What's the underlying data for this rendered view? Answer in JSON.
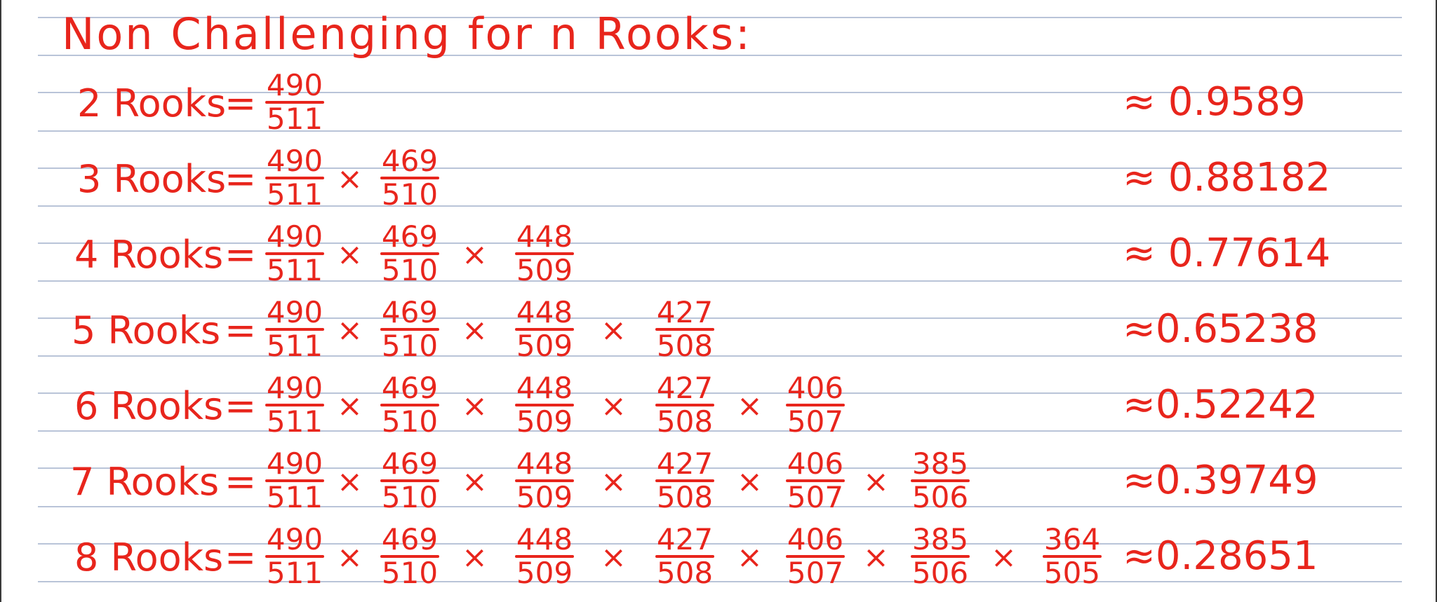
{
  "title": "Non Challenging for n Rooks:",
  "rows": [
    {
      "label": "2 Rooks",
      "eq": "=",
      "times": "×",
      "approx": "≈ 0.9589",
      "fractions": [
        {
          "num": "490",
          "den": "511"
        }
      ]
    },
    {
      "label": "3 Rooks",
      "eq": "=",
      "times": "×",
      "approx": "≈ 0.88182",
      "fractions": [
        {
          "num": "490",
          "den": "511"
        },
        {
          "num": "469",
          "den": "510"
        }
      ]
    },
    {
      "label": "4 Rooks",
      "eq": "=",
      "times": "×",
      "approx": "≈ 0.77614",
      "fractions": [
        {
          "num": "490",
          "den": "511"
        },
        {
          "num": "469",
          "den": "510"
        },
        {
          "num": "448",
          "den": "509"
        }
      ]
    },
    {
      "label": "5 Rooks",
      "eq": "=",
      "times": "×",
      "approx": "≈0.65238",
      "fractions": [
        {
          "num": "490",
          "den": "511"
        },
        {
          "num": "469",
          "den": "510"
        },
        {
          "num": "448",
          "den": "509"
        },
        {
          "num": "427",
          "den": "508"
        }
      ]
    },
    {
      "label": "6 Rooks",
      "eq": "=",
      "times": "×",
      "approx": "≈0.52242",
      "fractions": [
        {
          "num": "490",
          "den": "511"
        },
        {
          "num": "469",
          "den": "510"
        },
        {
          "num": "448",
          "den": "509"
        },
        {
          "num": "427",
          "den": "508"
        },
        {
          "num": "406",
          "den": "507"
        }
      ]
    },
    {
      "label": "7 Rooks",
      "eq": "=",
      "times": "×",
      "approx": "≈0.39749",
      "fractions": [
        {
          "num": "490",
          "den": "511"
        },
        {
          "num": "469",
          "den": "510"
        },
        {
          "num": "448",
          "den": "509"
        },
        {
          "num": "427",
          "den": "508"
        },
        {
          "num": "406",
          "den": "507"
        },
        {
          "num": "385",
          "den": "506"
        }
      ]
    },
    {
      "label": "8 Rooks",
      "eq": "=",
      "times": "×",
      "approx": "≈0.28651",
      "fractions": [
        {
          "num": "490",
          "den": "511"
        },
        {
          "num": "469",
          "den": "510"
        },
        {
          "num": "448",
          "den": "509"
        },
        {
          "num": "427",
          "den": "508"
        },
        {
          "num": "406",
          "den": "507"
        },
        {
          "num": "385",
          "den": "506"
        },
        {
          "num": "364",
          "den": "505"
        }
      ]
    }
  ]
}
